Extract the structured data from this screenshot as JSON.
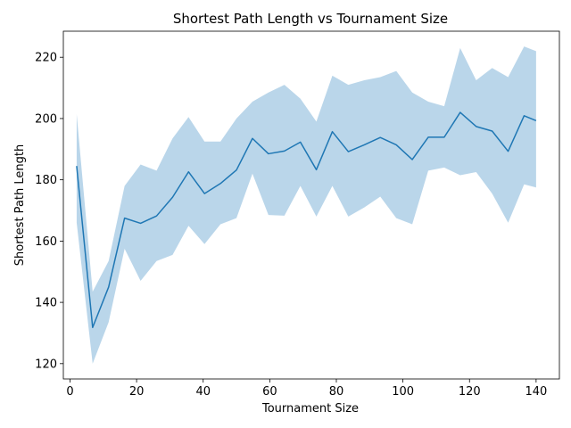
{
  "chart_data": {
    "type": "line",
    "title": "Shortest Path Length vs Tournament Size",
    "xlabel": "Tournament Size",
    "ylabel": "Shortest Path Length",
    "xlim": [
      -2,
      147
    ],
    "ylim": [
      115,
      228.5
    ],
    "xticks": [
      0,
      20,
      40,
      60,
      80,
      100,
      120,
      140
    ],
    "yticks": [
      120,
      140,
      160,
      180,
      200,
      220
    ],
    "grid": false,
    "colors": {
      "line": "#1f77b4",
      "band": "#bad6ea"
    },
    "series": [
      {
        "x": [
          2,
          6.8,
          11.6,
          16.4,
          21.2,
          26,
          30.8,
          35.6,
          40.4,
          45.2,
          50,
          54.8,
          59.6,
          64.4,
          69.2,
          74,
          78.8,
          83.6,
          88.4,
          93.2,
          98,
          102.8,
          107.6,
          112.4,
          117.2,
          122,
          126.8,
          131.6,
          136.4,
          140
        ],
        "y": [
          184.5,
          131.8,
          145,
          167.5,
          165.8,
          168.2,
          174.3,
          182.6,
          175.5,
          178.8,
          183.2,
          193.5,
          188.5,
          189.4,
          192.3,
          183.3,
          195.7,
          189.2,
          191.4,
          193.8,
          191.4,
          186.6,
          193.9,
          193.9,
          202,
          197.4,
          195.9,
          189.3,
          200.9,
          199.3
        ],
        "lower": [
          166,
          120,
          133.5,
          157.5,
          147,
          153.5,
          155.5,
          165,
          159,
          165.5,
          167.5,
          182,
          168.5,
          168.3,
          178,
          168,
          178,
          168,
          171,
          174.5,
          167.5,
          165.5,
          183,
          184,
          181.5,
          182.5,
          175.5,
          166,
          178.5,
          177.5
        ],
        "upper": [
          201.5,
          143.5,
          153.5,
          178,
          185,
          183,
          193.5,
          200.5,
          192.5,
          192.5,
          200,
          205.5,
          208.5,
          211,
          206.5,
          199,
          214,
          211,
          212.5,
          213.5,
          215.5,
          208.5,
          205.5,
          204,
          223,
          212.5,
          216.5,
          213.5,
          223.5,
          222
        ]
      }
    ]
  }
}
